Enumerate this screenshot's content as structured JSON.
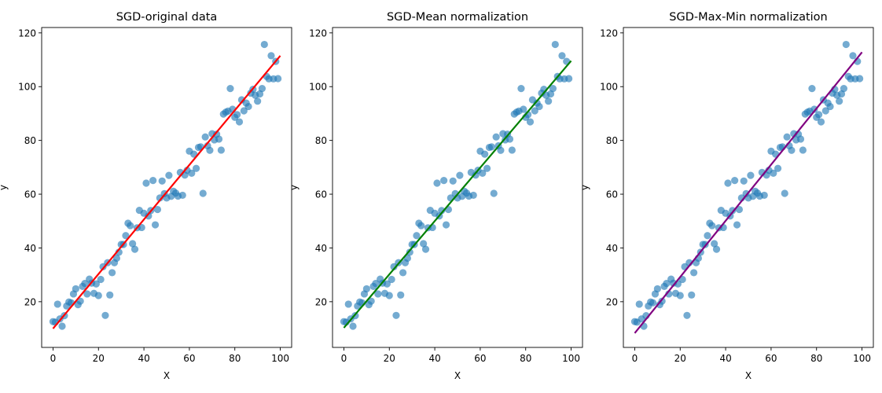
{
  "chart_data": [
    {
      "type": "scatter",
      "title": "SGD-original data",
      "xlabel": "X",
      "ylabel": "y",
      "xlim": [
        -5,
        105
      ],
      "ylim": [
        3,
        122
      ],
      "xticks": [
        0,
        20,
        40,
        60,
        80,
        100
      ],
      "yticks": [
        20,
        40,
        60,
        80,
        100,
        120
      ],
      "grid": false,
      "scatter_color": "#1f77b4",
      "line_color": "#ff0000",
      "x": [
        0,
        1,
        2,
        3,
        4,
        5,
        6,
        7,
        8,
        9,
        10,
        11,
        12,
        13,
        14,
        15,
        16,
        17,
        18,
        19,
        20,
        21,
        22,
        23,
        24,
        25,
        26,
        27,
        28,
        29,
        30,
        31,
        32,
        33,
        34,
        35,
        36,
        37,
        38,
        39,
        40,
        41,
        42,
        43,
        44,
        45,
        46,
        47,
        48,
        49,
        50,
        51,
        52,
        53,
        54,
        55,
        56,
        57,
        58,
        59,
        60,
        61,
        62,
        63,
        64,
        65,
        66,
        67,
        68,
        69,
        70,
        71,
        72,
        73,
        74,
        75,
        76,
        77,
        78,
        79,
        80,
        81,
        82,
        83,
        84,
        85,
        86,
        87,
        88,
        89,
        90,
        91,
        92,
        93,
        94,
        95,
        96,
        97,
        98,
        99
      ],
      "y": [
        12.6,
        12.4,
        19.1,
        13.6,
        10.9,
        14.8,
        18.4,
        19.9,
        19.6,
        22.9,
        24.8,
        18.9,
        20.2,
        25.7,
        26.8,
        22.9,
        28.4,
        26.9,
        23.1,
        26.6,
        22.3,
        28.3,
        33.0,
        14.9,
        34.5,
        22.5,
        30.8,
        34.5,
        36.2,
        38.4,
        41.3,
        41.3,
        44.6,
        49.2,
        48.3,
        41.6,
        39.5,
        47.5,
        54.0,
        47.6,
        52.9,
        64.1,
        51.9,
        53.9,
        65.1,
        48.6,
        54.3,
        58.6,
        64.9,
        60.2,
        58.6,
        67.0,
        59.2,
        61.1,
        60.4,
        59.3,
        68.1,
        59.6,
        67.1,
        68.9,
        76.0,
        67.8,
        74.9,
        69.6,
        77.4,
        77.6,
        60.3,
        81.3,
        78.0,
        76.3,
        82.5,
        80.2,
        82.3,
        80.5,
        76.4,
        89.8,
        90.5,
        90.9,
        99.3,
        91.6,
        88.6,
        89.6,
        86.9,
        95.1,
        91.0,
        93.9,
        92.6,
        97.6,
        99.0,
        96.8,
        94.6,
        97.3,
        99.3,
        115.7,
        103.8,
        102.9,
        111.5,
        102.9,
        109.4,
        103.0
      ],
      "fit_line": {
        "x": [
          0,
          100
        ],
        "y": [
          10.0,
          111.5
        ]
      }
    },
    {
      "type": "scatter",
      "title": "SGD-Mean normalization",
      "xlabel": "X",
      "ylabel": "y",
      "xlim": [
        -5,
        105
      ],
      "ylim": [
        3,
        122
      ],
      "xticks": [
        0,
        20,
        40,
        60,
        80,
        100
      ],
      "yticks": [
        20,
        40,
        60,
        80,
        100,
        120
      ],
      "grid": false,
      "scatter_color": "#1f77b4",
      "line_color": "#008000",
      "x": [
        0,
        1,
        2,
        3,
        4,
        5,
        6,
        7,
        8,
        9,
        10,
        11,
        12,
        13,
        14,
        15,
        16,
        17,
        18,
        19,
        20,
        21,
        22,
        23,
        24,
        25,
        26,
        27,
        28,
        29,
        30,
        31,
        32,
        33,
        34,
        35,
        36,
        37,
        38,
        39,
        40,
        41,
        42,
        43,
        44,
        45,
        46,
        47,
        48,
        49,
        50,
        51,
        52,
        53,
        54,
        55,
        56,
        57,
        58,
        59,
        60,
        61,
        62,
        63,
        64,
        65,
        66,
        67,
        68,
        69,
        70,
        71,
        72,
        73,
        74,
        75,
        76,
        77,
        78,
        79,
        80,
        81,
        82,
        83,
        84,
        85,
        86,
        87,
        88,
        89,
        90,
        91,
        92,
        93,
        94,
        95,
        96,
        97,
        98,
        99
      ],
      "y": [
        12.6,
        12.4,
        19.1,
        13.6,
        10.9,
        14.8,
        18.4,
        19.9,
        19.6,
        22.9,
        24.8,
        18.9,
        20.2,
        25.7,
        26.8,
        22.9,
        28.4,
        26.9,
        23.1,
        26.6,
        22.3,
        28.3,
        33.0,
        14.9,
        34.5,
        22.5,
        30.8,
        34.5,
        36.2,
        38.4,
        41.3,
        41.3,
        44.6,
        49.2,
        48.3,
        41.6,
        39.5,
        47.5,
        54.0,
        47.6,
        52.9,
        64.1,
        51.9,
        53.9,
        65.1,
        48.6,
        54.3,
        58.6,
        64.9,
        60.2,
        58.6,
        67.0,
        59.2,
        61.1,
        60.4,
        59.3,
        68.1,
        59.6,
        67.1,
        68.9,
        76.0,
        67.8,
        74.9,
        69.6,
        77.4,
        77.6,
        60.3,
        81.3,
        78.0,
        76.3,
        82.5,
        80.2,
        82.3,
        80.5,
        76.4,
        89.8,
        90.5,
        90.9,
        99.3,
        91.6,
        88.6,
        89.6,
        86.9,
        95.1,
        91.0,
        93.9,
        92.6,
        97.6,
        99.0,
        96.8,
        94.6,
        97.3,
        99.3,
        115.7,
        103.8,
        102.9,
        111.5,
        102.9,
        109.4,
        103.0
      ],
      "fit_line": {
        "x": [
          0,
          100
        ],
        "y": [
          10.3,
          109.6
        ]
      }
    },
    {
      "type": "scatter",
      "title": "SGD-Max-Min normalization",
      "xlabel": "X",
      "ylabel": "y",
      "xlim": [
        -5,
        105
      ],
      "ylim": [
        3,
        122
      ],
      "xticks": [
        0,
        20,
        40,
        60,
        80,
        100
      ],
      "yticks": [
        20,
        40,
        60,
        80,
        100,
        120
      ],
      "grid": false,
      "scatter_color": "#1f77b4",
      "line_color": "#800080",
      "x": [
        0,
        1,
        2,
        3,
        4,
        5,
        6,
        7,
        8,
        9,
        10,
        11,
        12,
        13,
        14,
        15,
        16,
        17,
        18,
        19,
        20,
        21,
        22,
        23,
        24,
        25,
        26,
        27,
        28,
        29,
        30,
        31,
        32,
        33,
        34,
        35,
        36,
        37,
        38,
        39,
        40,
        41,
        42,
        43,
        44,
        45,
        46,
        47,
        48,
        49,
        50,
        51,
        52,
        53,
        54,
        55,
        56,
        57,
        58,
        59,
        60,
        61,
        62,
        63,
        64,
        65,
        66,
        67,
        68,
        69,
        70,
        71,
        72,
        73,
        74,
        75,
        76,
        77,
        78,
        79,
        80,
        81,
        82,
        83,
        84,
        85,
        86,
        87,
        88,
        89,
        90,
        91,
        92,
        93,
        94,
        95,
        96,
        97,
        98,
        99
      ],
      "y": [
        12.6,
        12.4,
        19.1,
        13.6,
        10.9,
        14.8,
        18.4,
        19.9,
        19.6,
        22.9,
        24.8,
        18.9,
        20.2,
        25.7,
        26.8,
        22.9,
        28.4,
        26.9,
        23.1,
        26.6,
        22.3,
        28.3,
        33.0,
        14.9,
        34.5,
        22.5,
        30.8,
        34.5,
        36.2,
        38.4,
        41.3,
        41.3,
        44.6,
        49.2,
        48.3,
        41.6,
        39.5,
        47.5,
        54.0,
        47.6,
        52.9,
        64.1,
        51.9,
        53.9,
        65.1,
        48.6,
        54.3,
        58.6,
        64.9,
        60.2,
        58.6,
        67.0,
        59.2,
        61.1,
        60.4,
        59.3,
        68.1,
        59.6,
        67.1,
        68.9,
        76.0,
        67.8,
        74.9,
        69.6,
        77.4,
        77.6,
        60.3,
        81.3,
        78.0,
        76.3,
        82.5,
        80.2,
        82.3,
        80.5,
        76.4,
        89.8,
        90.5,
        90.9,
        99.3,
        91.6,
        88.6,
        89.6,
        86.9,
        95.1,
        91.0,
        93.9,
        92.6,
        97.6,
        99.0,
        96.8,
        94.6,
        97.3,
        99.3,
        115.7,
        103.8,
        102.9,
        111.5,
        102.9,
        109.4,
        103.0
      ],
      "fit_line": {
        "x": [
          0,
          100
        ],
        "y": [
          8.3,
          112.8
        ]
      }
    }
  ]
}
